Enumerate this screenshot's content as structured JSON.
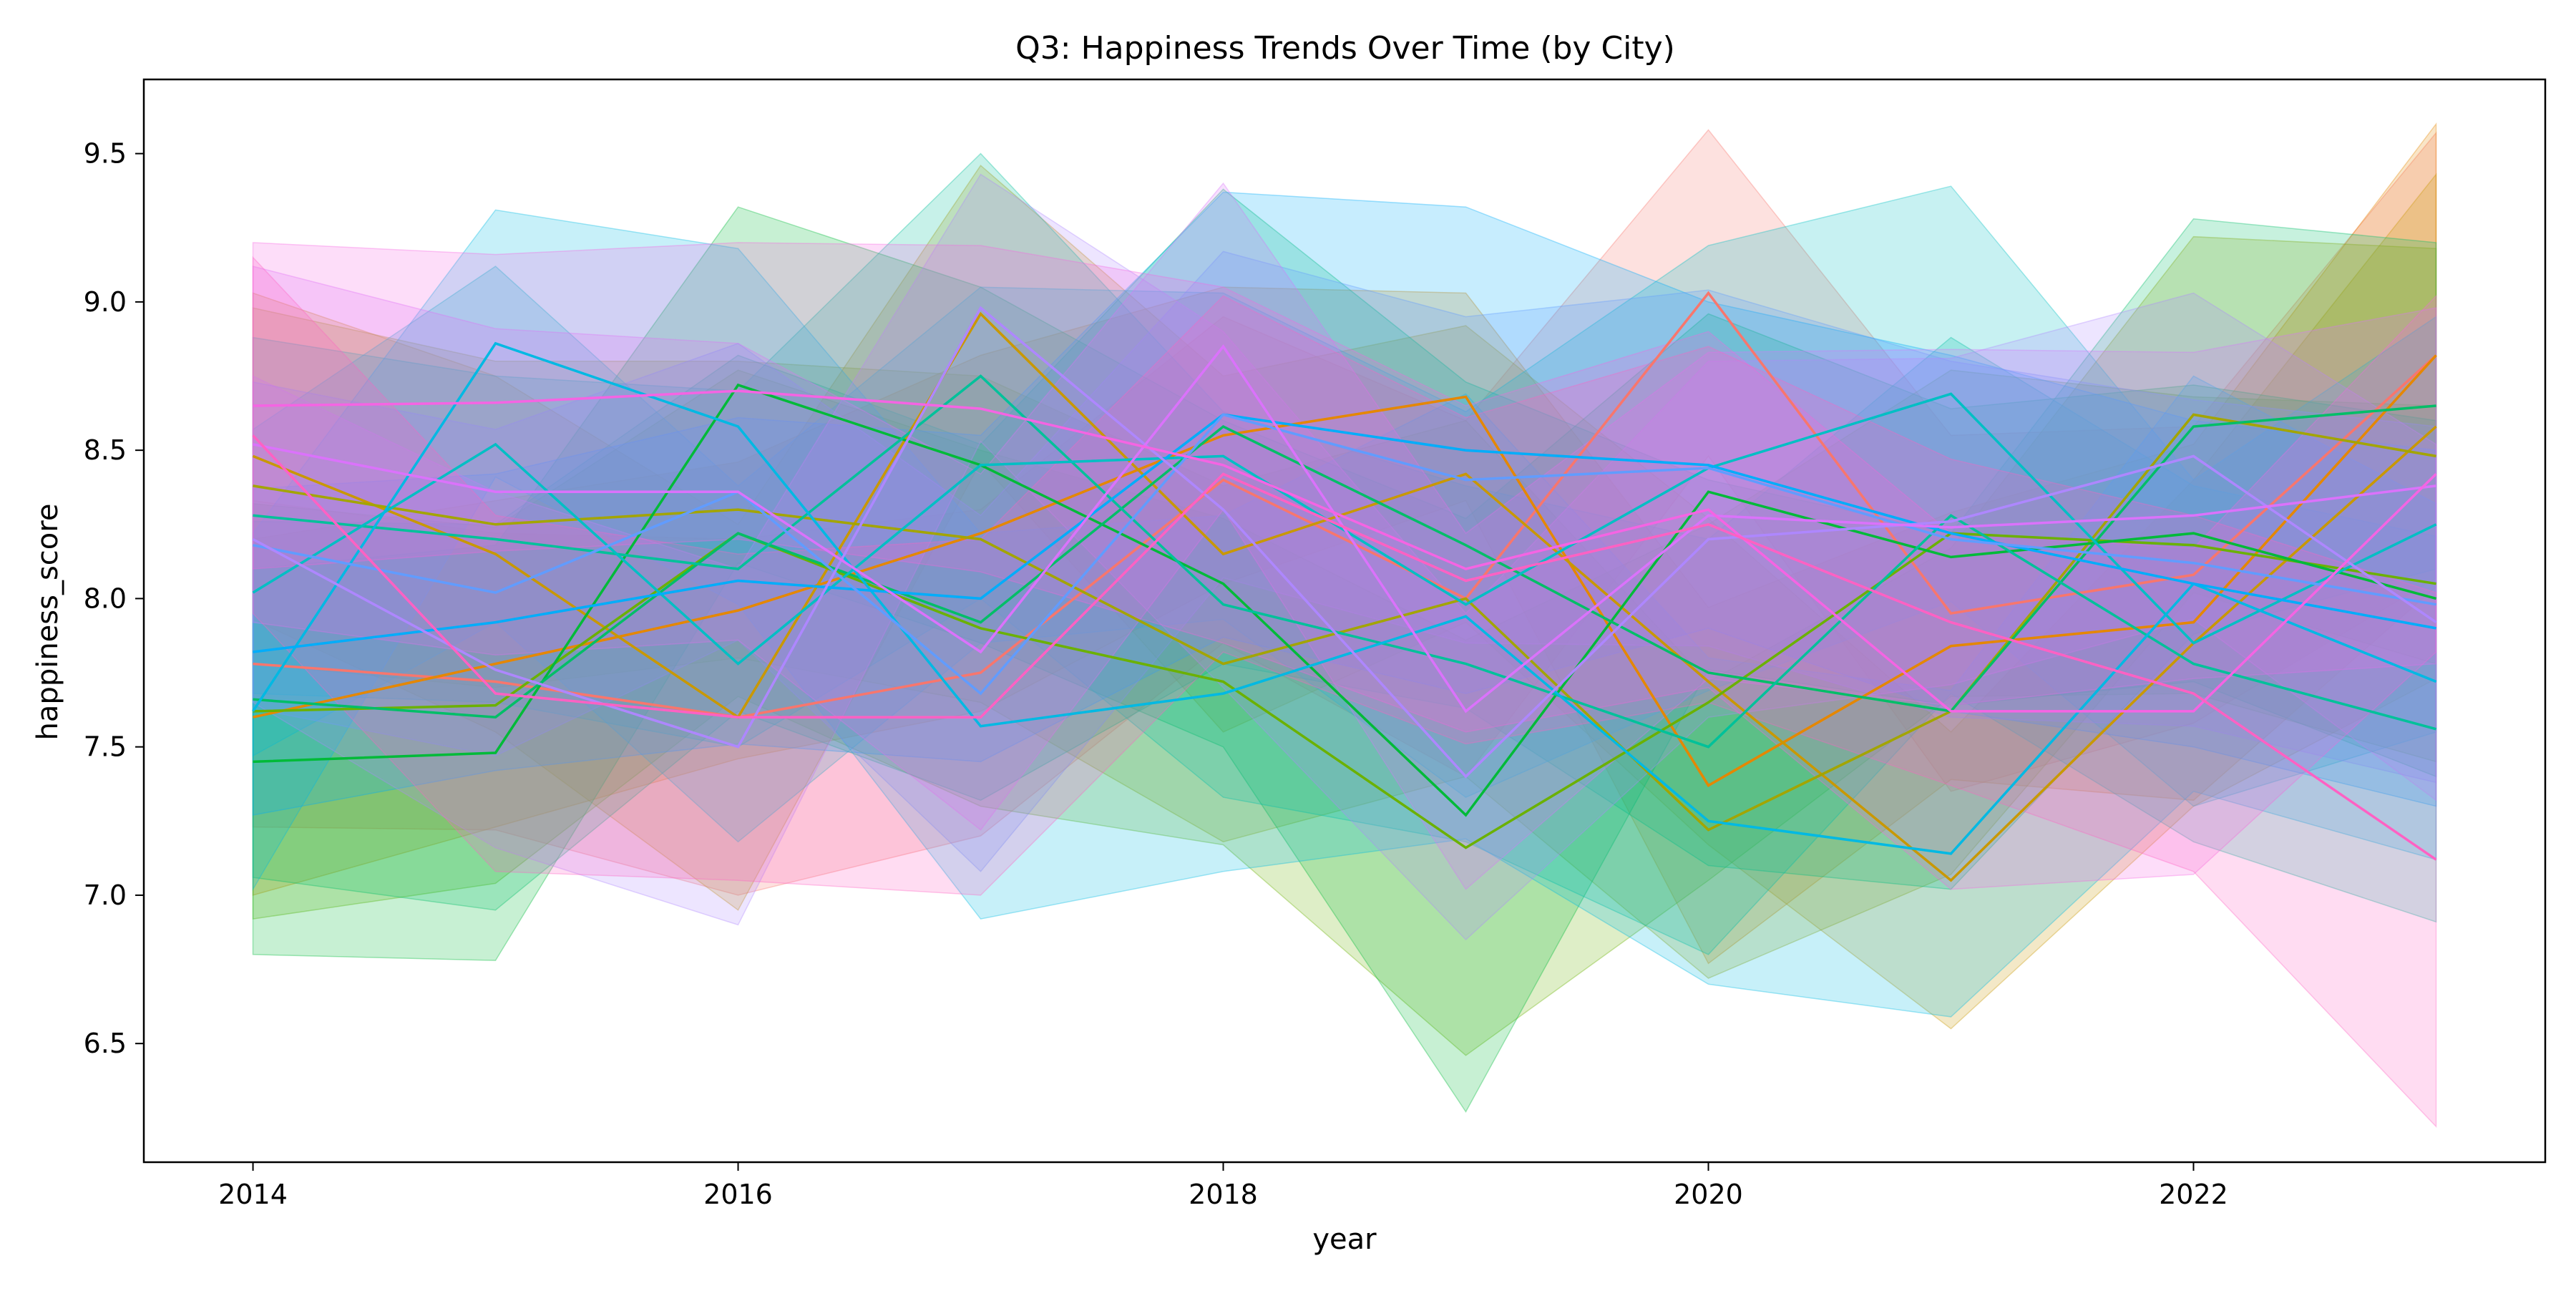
{
  "chart_data": {
    "type": "line",
    "title": "Q3: Happiness Trends Over Time (by City)",
    "xlabel": "year",
    "ylabel": "happiness_score",
    "xlim": [
      2013.55,
      2023.45
    ],
    "ylim": [
      6.1,
      9.75
    ],
    "x_ticks": [
      "2014",
      "2016",
      "2018",
      "2020",
      "2022"
    ],
    "x_tick_values": [
      2014,
      2016,
      2018,
      2020,
      2022
    ],
    "y_ticks": [
      "6.5",
      "7.0",
      "7.5",
      "8.0",
      "8.5",
      "9.0",
      "9.5"
    ],
    "y_tick_values": [
      6.5,
      7.0,
      7.5,
      8.0,
      8.5,
      9.0,
      9.5
    ],
    "grid": false,
    "legend": "none",
    "band_opacity": 0.22,
    "x": [
      2014,
      2015,
      2016,
      2017,
      2018,
      2019,
      2020,
      2021,
      2022,
      2023
    ],
    "series": [
      {
        "color": "#f8766d",
        "values": [
          7.78,
          7.72,
          7.6,
          7.75,
          8.4,
          8.0,
          9.03,
          7.95,
          8.08,
          8.82
        ],
        "band": [
          0.55,
          0.5,
          0.6,
          0.55,
          0.55,
          0.6,
          0.55,
          0.6,
          0.5,
          0.75
        ]
      },
      {
        "color": "#e58700",
        "values": [
          7.6,
          7.78,
          7.96,
          8.22,
          8.55,
          8.68,
          7.37,
          7.84,
          7.92,
          8.82
        ],
        "band": [
          0.6,
          0.55,
          0.5,
          0.6,
          0.5,
          0.35,
          0.6,
          0.45,
          0.6,
          0.78
        ]
      },
      {
        "color": "#c99800",
        "values": [
          8.48,
          8.15,
          7.6,
          8.96,
          8.15,
          8.42,
          7.72,
          7.05,
          7.85,
          8.58
        ],
        "band": [
          0.55,
          0.6,
          0.65,
          0.5,
          0.6,
          0.5,
          0.55,
          0.5,
          0.55,
          0.85
        ]
      },
      {
        "color": "#a3a500",
        "values": [
          8.38,
          8.25,
          8.3,
          8.2,
          7.78,
          8.0,
          7.22,
          7.62,
          8.62,
          8.48
        ],
        "band": [
          0.6,
          0.55,
          0.5,
          0.55,
          0.6,
          0.6,
          0.5,
          0.55,
          0.6,
          0.7
        ]
      },
      {
        "color": "#6bb100",
        "values": [
          7.62,
          7.64,
          8.22,
          7.9,
          7.72,
          7.16,
          7.65,
          8.22,
          8.18,
          8.05
        ],
        "band": [
          0.7,
          0.6,
          0.55,
          0.6,
          0.55,
          0.7,
          0.6,
          0.55,
          0.5,
          0.6
        ]
      },
      {
        "color": "#00ba38",
        "values": [
          7.45,
          7.48,
          8.72,
          8.45,
          8.05,
          7.27,
          8.36,
          8.14,
          8.22,
          8.0
        ],
        "band": [
          0.65,
          0.7,
          0.6,
          0.6,
          0.55,
          1.0,
          0.6,
          0.5,
          0.5,
          0.6
        ]
      },
      {
        "color": "#00be67",
        "values": [
          7.66,
          7.6,
          8.22,
          7.92,
          8.58,
          8.18,
          7.75,
          7.62,
          8.58,
          8.65
        ],
        "band": [
          0.6,
          0.65,
          0.6,
          0.6,
          0.8,
          0.55,
          0.65,
          0.6,
          0.7,
          0.55
        ]
      },
      {
        "color": "#00c19a",
        "values": [
          8.28,
          8.2,
          8.1,
          8.75,
          7.98,
          7.78,
          7.5,
          8.28,
          7.78,
          7.56
        ],
        "band": [
          0.6,
          0.55,
          0.6,
          0.75,
          0.65,
          0.6,
          0.7,
          0.6,
          0.6,
          0.65
        ]
      },
      {
        "color": "#00bfc4",
        "values": [
          8.02,
          8.52,
          7.78,
          8.45,
          8.48,
          7.98,
          8.44,
          8.69,
          7.85,
          8.25
        ],
        "band": [
          0.55,
          0.6,
          0.6,
          0.6,
          0.55,
          0.65,
          0.75,
          0.7,
          0.55,
          0.7
        ]
      },
      {
        "color": "#00b9e3",
        "values": [
          7.62,
          8.86,
          8.58,
          7.57,
          7.68,
          7.94,
          7.25,
          7.14,
          8.05,
          7.72
        ],
        "band": [
          0.6,
          0.45,
          0.6,
          0.65,
          0.6,
          0.75,
          0.55,
          0.55,
          0.7,
          0.6
        ]
      },
      {
        "color": "#00adfa",
        "values": [
          7.82,
          7.92,
          8.06,
          8.0,
          8.62,
          8.5,
          8.45,
          8.22,
          8.05,
          7.9
        ],
        "band": [
          0.55,
          0.5,
          0.55,
          0.55,
          0.75,
          0.82,
          0.55,
          0.6,
          0.55,
          0.6
        ]
      },
      {
        "color": "#619cff",
        "values": [
          8.18,
          8.02,
          8.36,
          7.68,
          8.62,
          8.4,
          8.44,
          8.2,
          8.12,
          7.98
        ],
        "band": [
          0.55,
          0.55,
          0.5,
          0.6,
          0.55,
          0.55,
          0.6,
          0.6,
          0.55,
          0.6
        ]
      },
      {
        "color": "#ae87ff",
        "values": [
          8.2,
          7.76,
          7.5,
          8.98,
          8.3,
          7.4,
          8.2,
          8.26,
          8.48,
          7.92
        ],
        "band": [
          0.55,
          0.6,
          0.6,
          0.45,
          0.6,
          0.55,
          0.6,
          0.55,
          0.55,
          0.6
        ]
      },
      {
        "color": "#db72fb",
        "values": [
          8.52,
          8.36,
          8.36,
          7.82,
          8.85,
          7.62,
          8.28,
          8.24,
          8.28,
          8.38
        ],
        "band": [
          0.6,
          0.55,
          0.5,
          0.6,
          0.55,
          0.6,
          0.55,
          0.6,
          0.55,
          0.6
        ]
      },
      {
        "color": "#f564e3",
        "values": [
          8.65,
          8.66,
          8.7,
          8.64,
          8.45,
          8.1,
          8.3,
          7.62,
          7.62,
          8.42
        ],
        "band": [
          0.55,
          0.5,
          0.5,
          0.55,
          0.6,
          0.55,
          0.6,
          0.6,
          0.55,
          0.6
        ]
      },
      {
        "color": "#ff61c3",
        "values": [
          8.55,
          7.68,
          7.6,
          7.6,
          8.42,
          8.06,
          8.25,
          7.92,
          7.68,
          7.12
        ],
        "band": [
          0.6,
          0.6,
          0.55,
          0.6,
          0.6,
          0.55,
          0.6,
          0.55,
          0.6,
          0.9
        ]
      }
    ]
  }
}
